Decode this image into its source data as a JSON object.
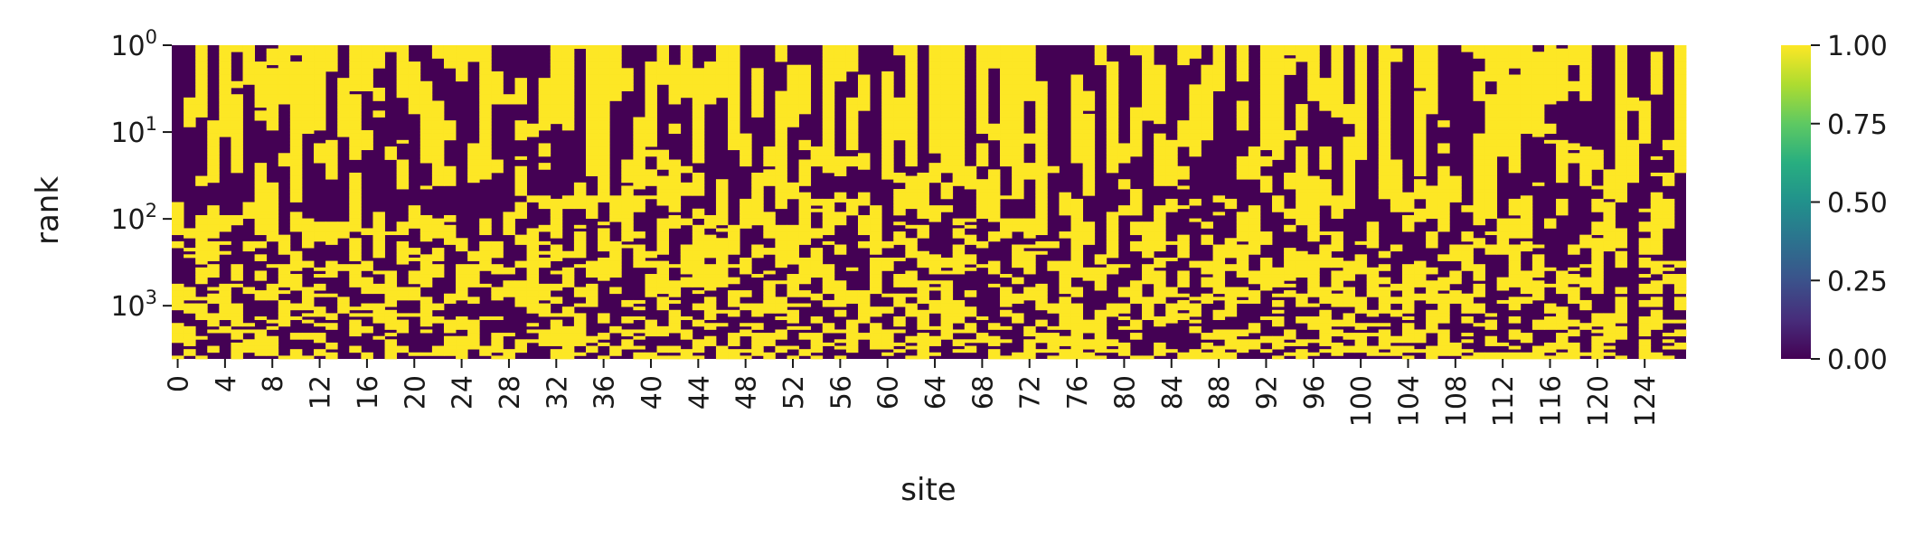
{
  "chart_data": {
    "type": "heatmap",
    "title": "",
    "xlabel": "site",
    "ylabel": "rank",
    "x_ticks": [
      "0",
      "4",
      "8",
      "12",
      "16",
      "20",
      "24",
      "28",
      "32",
      "36",
      "40",
      "44",
      "48",
      "52",
      "56",
      "60",
      "64",
      "68",
      "72",
      "76",
      "80",
      "84",
      "88",
      "92",
      "96",
      "100",
      "104",
      "108",
      "112",
      "116",
      "120",
      "124"
    ],
    "x_range": [
      0,
      128
    ],
    "y_scale": "log",
    "y_ticks": [
      {
        "base": "10",
        "exp": "0",
        "value": 1
      },
      {
        "base": "10",
        "exp": "1",
        "value": 10
      },
      {
        "base": "10",
        "exp": "2",
        "value": 100
      },
      {
        "base": "10",
        "exp": "3",
        "value": 1000
      }
    ],
    "y_range": [
      1,
      4096
    ],
    "colorbar": {
      "colormap": "viridis",
      "range": [
        0,
        1
      ],
      "ticks": [
        "1.00",
        "0.75",
        "0.50",
        "0.25",
        "0.00"
      ]
    },
    "colors": {
      "low": "#440154",
      "high": "#fde725"
    },
    "values_note_binary": [
      0,
      1
    ]
  }
}
